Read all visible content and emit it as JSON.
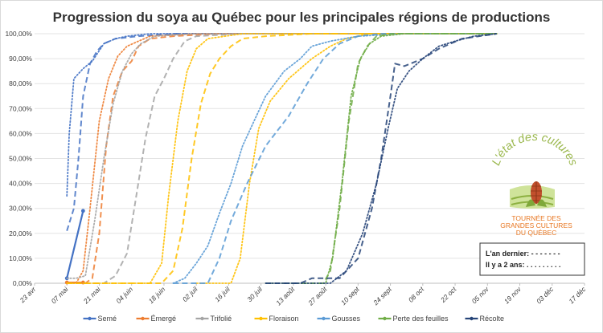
{
  "chart_data": {
    "type": "line",
    "title": "Progression du soya au Québec pour les principales régions de productions",
    "xlabel": "",
    "ylabel": "",
    "x_ticks": [
      "23 avr",
      "07 mai",
      "21 mai",
      "04 juin",
      "18 juin",
      "02 juil",
      "16 juil",
      "30 juil",
      "13 août",
      "27 août",
      "10 sept",
      "24 sept",
      "08 oct",
      "22 oct",
      "05 nov",
      "19 nov",
      "03 déc",
      "17 déc"
    ],
    "y_ticks": [
      "0,00%",
      "10,00%",
      "20,00%",
      "30,00%",
      "40,00%",
      "50,00%",
      "60,00%",
      "70,00%",
      "80,00%",
      "90,00%",
      "100,00%"
    ],
    "ylim": [
      0,
      100
    ],
    "xlim_days": [
      0,
      238
    ],
    "grid": "horizontal",
    "legend_position": "bottom",
    "series_colors": {
      "Semé": "#4472c4",
      "Émergé": "#ed7d31",
      "Trifolié": "#a5a5a5",
      "Floraison": "#ffc000",
      "Gousses": "#5b9bd5",
      "Perte des feuilles": "#70ad47",
      "Récolte": "#264478"
    },
    "legend": [
      "Semé",
      "Émergé",
      "Trifolié",
      "Floraison",
      "Gousses",
      "Perte des feuilles",
      "Récolte"
    ],
    "series": [
      {
        "name": "Semé",
        "style": "solid",
        "markers": true,
        "points": [
          [
            14,
            2
          ],
          [
            21,
            29
          ]
        ]
      },
      {
        "name": "Émergé",
        "style": "solid",
        "markers": true,
        "points": [
          [
            14,
            0.3
          ],
          [
            21,
            0.3
          ]
        ]
      },
      {
        "name": "Semé",
        "style": "dash",
        "points": [
          [
            14,
            21
          ],
          [
            17,
            30
          ],
          [
            19,
            50
          ],
          [
            21,
            75
          ],
          [
            24,
            88
          ],
          [
            27,
            93
          ],
          [
            30,
            96
          ],
          [
            35,
            98
          ],
          [
            45,
            99
          ],
          [
            60,
            100
          ],
          [
            200,
            100
          ]
        ]
      },
      {
        "name": "Semé",
        "style": "dot",
        "points": [
          [
            14,
            35
          ],
          [
            15,
            60
          ],
          [
            17,
            82
          ],
          [
            21,
            86
          ],
          [
            25,
            89
          ],
          [
            30,
            96
          ],
          [
            35,
            98
          ],
          [
            40,
            99
          ],
          [
            50,
            100
          ],
          [
            200,
            100
          ]
        ]
      },
      {
        "name": "Émergé",
        "style": "dash",
        "points": [
          [
            14,
            0
          ],
          [
            22,
            0
          ],
          [
            25,
            2
          ],
          [
            28,
            20
          ],
          [
            31,
            55
          ],
          [
            34,
            75
          ],
          [
            38,
            85
          ],
          [
            42,
            89
          ],
          [
            45,
            95
          ],
          [
            50,
            98
          ],
          [
            60,
            99
          ],
          [
            80,
            100
          ],
          [
            200,
            100
          ]
        ]
      },
      {
        "name": "Émergé",
        "style": "dot",
        "points": [
          [
            14,
            0
          ],
          [
            18,
            0
          ],
          [
            21,
            5
          ],
          [
            24,
            30
          ],
          [
            28,
            65
          ],
          [
            32,
            82
          ],
          [
            36,
            91
          ],
          [
            40,
            95
          ],
          [
            45,
            97
          ],
          [
            50,
            99
          ],
          [
            70,
            100
          ],
          [
            200,
            100
          ]
        ]
      },
      {
        "name": "Trifolié",
        "style": "dash",
        "points": [
          [
            14,
            0
          ],
          [
            30,
            0
          ],
          [
            35,
            3
          ],
          [
            40,
            12
          ],
          [
            44,
            35
          ],
          [
            48,
            58
          ],
          [
            52,
            75
          ],
          [
            56,
            82
          ],
          [
            60,
            90
          ],
          [
            65,
            97
          ],
          [
            70,
            99
          ],
          [
            90,
            100
          ],
          [
            200,
            100
          ]
        ]
      },
      {
        "name": "Trifolié",
        "style": "dot",
        "points": [
          [
            14,
            2
          ],
          [
            18,
            2
          ],
          [
            22,
            3
          ],
          [
            26,
            25
          ],
          [
            30,
            50
          ],
          [
            34,
            72
          ],
          [
            38,
            85
          ],
          [
            42,
            92
          ],
          [
            46,
            96
          ],
          [
            52,
            99
          ],
          [
            70,
            100
          ],
          [
            200,
            100
          ]
        ]
      },
      {
        "name": "Floraison",
        "style": "dash",
        "points": [
          [
            14,
            0
          ],
          [
            55,
            0
          ],
          [
            60,
            5
          ],
          [
            64,
            22
          ],
          [
            68,
            50
          ],
          [
            72,
            72
          ],
          [
            76,
            84
          ],
          [
            80,
            90
          ],
          [
            85,
            95
          ],
          [
            90,
            98
          ],
          [
            100,
            99
          ],
          [
            120,
            100
          ],
          [
            200,
            100
          ]
        ]
      },
      {
        "name": "Floraison",
        "style": "dot",
        "points": [
          [
            14,
            0
          ],
          [
            50,
            0
          ],
          [
            55,
            8
          ],
          [
            58,
            35
          ],
          [
            62,
            65
          ],
          [
            66,
            85
          ],
          [
            70,
            94
          ],
          [
            75,
            98
          ],
          [
            90,
            100
          ],
          [
            200,
            100
          ]
        ]
      },
      {
        "name": "Floraison",
        "style": "dot",
        "points": [
          [
            70,
            0
          ],
          [
            85,
            0
          ],
          [
            89,
            10
          ],
          [
            93,
            40
          ],
          [
            97,
            62
          ],
          [
            102,
            73
          ],
          [
            110,
            82
          ],
          [
            120,
            90
          ],
          [
            128,
            95
          ],
          [
            135,
            98
          ],
          [
            145,
            100
          ],
          [
            200,
            100
          ]
        ]
      },
      {
        "name": "Gousses",
        "style": "dash",
        "points": [
          [
            60,
            0
          ],
          [
            75,
            0
          ],
          [
            80,
            10
          ],
          [
            85,
            25
          ],
          [
            92,
            40
          ],
          [
            100,
            55
          ],
          [
            110,
            67
          ],
          [
            118,
            80
          ],
          [
            125,
            90
          ],
          [
            132,
            96
          ],
          [
            140,
            99
          ],
          [
            150,
            100
          ],
          [
            200,
            100
          ]
        ]
      },
      {
        "name": "Gousses",
        "style": "dot",
        "points": [
          [
            60,
            0
          ],
          [
            65,
            2
          ],
          [
            70,
            8
          ],
          [
            75,
            15
          ],
          [
            80,
            28
          ],
          [
            85,
            40
          ],
          [
            90,
            55
          ],
          [
            95,
            65
          ],
          [
            100,
            75
          ],
          [
            108,
            85
          ],
          [
            115,
            90
          ],
          [
            120,
            95
          ],
          [
            128,
            97
          ],
          [
            140,
            99
          ],
          [
            160,
            100
          ],
          [
            200,
            100
          ]
        ]
      },
      {
        "name": "Perte des feuilles",
        "style": "dash",
        "points": [
          [
            100,
            0
          ],
          [
            125,
            0
          ],
          [
            128,
            5
          ],
          [
            132,
            30
          ],
          [
            136,
            65
          ],
          [
            140,
            88
          ],
          [
            144,
            95
          ],
          [
            148,
            99
          ],
          [
            155,
            100
          ],
          [
            200,
            100
          ]
        ]
      },
      {
        "name": "Perte des feuilles",
        "style": "dot",
        "points": [
          [
            100,
            0
          ],
          [
            126,
            0
          ],
          [
            129,
            10
          ],
          [
            133,
            40
          ],
          [
            137,
            75
          ],
          [
            141,
            90
          ],
          [
            145,
            96
          ],
          [
            150,
            99
          ],
          [
            160,
            100
          ],
          [
            200,
            100
          ]
        ]
      },
      {
        "name": "Récolte",
        "style": "dash",
        "points": [
          [
            100,
            0
          ],
          [
            115,
            0
          ],
          [
            120,
            2
          ],
          [
            125,
            2
          ],
          [
            132,
            2
          ],
          [
            140,
            10
          ],
          [
            146,
            30
          ],
          [
            150,
            50
          ],
          [
            154,
            75
          ],
          [
            156,
            88
          ],
          [
            160,
            87
          ],
          [
            168,
            90
          ],
          [
            175,
            94
          ],
          [
            185,
            98
          ],
          [
            200,
            100
          ]
        ]
      },
      {
        "name": "Récolte",
        "style": "dot",
        "points": [
          [
            100,
            0
          ],
          [
            128,
            0
          ],
          [
            135,
            5
          ],
          [
            142,
            20
          ],
          [
            148,
            40
          ],
          [
            153,
            62
          ],
          [
            157,
            78
          ],
          [
            162,
            85
          ],
          [
            168,
            90
          ],
          [
            175,
            95
          ],
          [
            182,
            97
          ],
          [
            190,
            99
          ],
          [
            200,
            100
          ]
        ]
      }
    ]
  },
  "logo": {
    "arc_text": "L'état des cultures",
    "line1": "TOURNÉE DES",
    "line2": "GRANDES CULTURES",
    "line3": "DU QUÉBEC"
  },
  "note_box": {
    "line1": "L'an dernier: - - - - - - -",
    "line2": "Il y a 2 ans: . . . . . . . . ."
  }
}
